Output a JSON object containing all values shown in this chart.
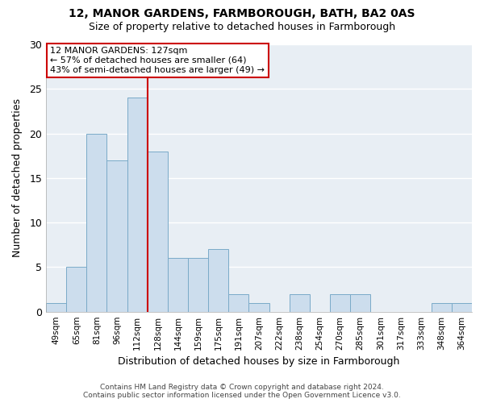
{
  "title": "12, MANOR GARDENS, FARMBOROUGH, BATH, BA2 0AS",
  "subtitle": "Size of property relative to detached houses in Farmborough",
  "xlabel": "Distribution of detached houses by size in Farmborough",
  "ylabel": "Number of detached properties",
  "bin_labels": [
    "49sqm",
    "65sqm",
    "81sqm",
    "96sqm",
    "112sqm",
    "128sqm",
    "144sqm",
    "159sqm",
    "175sqm",
    "191sqm",
    "207sqm",
    "222sqm",
    "238sqm",
    "254sqm",
    "270sqm",
    "285sqm",
    "301sqm",
    "317sqm",
    "333sqm",
    "348sqm",
    "364sqm"
  ],
  "bar_values": [
    1,
    5,
    20,
    17,
    24,
    18,
    6,
    6,
    7,
    2,
    1,
    0,
    2,
    0,
    2,
    2,
    0,
    0,
    0,
    1,
    1
  ],
  "bar_color": "#ccdded",
  "bar_edge_color": "#7aaac8",
  "vline_x_index": 5,
  "vline_color": "#cc0000",
  "ylim": [
    0,
    30
  ],
  "yticks": [
    0,
    5,
    10,
    15,
    20,
    25,
    30
  ],
  "annotation_title": "12 MANOR GARDENS: 127sqm",
  "annotation_line1": "← 57% of detached houses are smaller (64)",
  "annotation_line2": "43% of semi-detached houses are larger (49) →",
  "annotation_box_color": "#ffffff",
  "annotation_box_edge": "#cc0000",
  "footer_line1": "Contains HM Land Registry data © Crown copyright and database right 2024.",
  "footer_line2": "Contains public sector information licensed under the Open Government Licence v3.0.",
  "background_color": "#ffffff",
  "plot_bg_color": "#e8eef4",
  "grid_color": "#ffffff",
  "title_fontsize": 10,
  "subtitle_fontsize": 9,
  "ylabel_fontsize": 9,
  "xlabel_fontsize": 9,
  "tick_fontsize": 7.5,
  "footer_fontsize": 6.5
}
